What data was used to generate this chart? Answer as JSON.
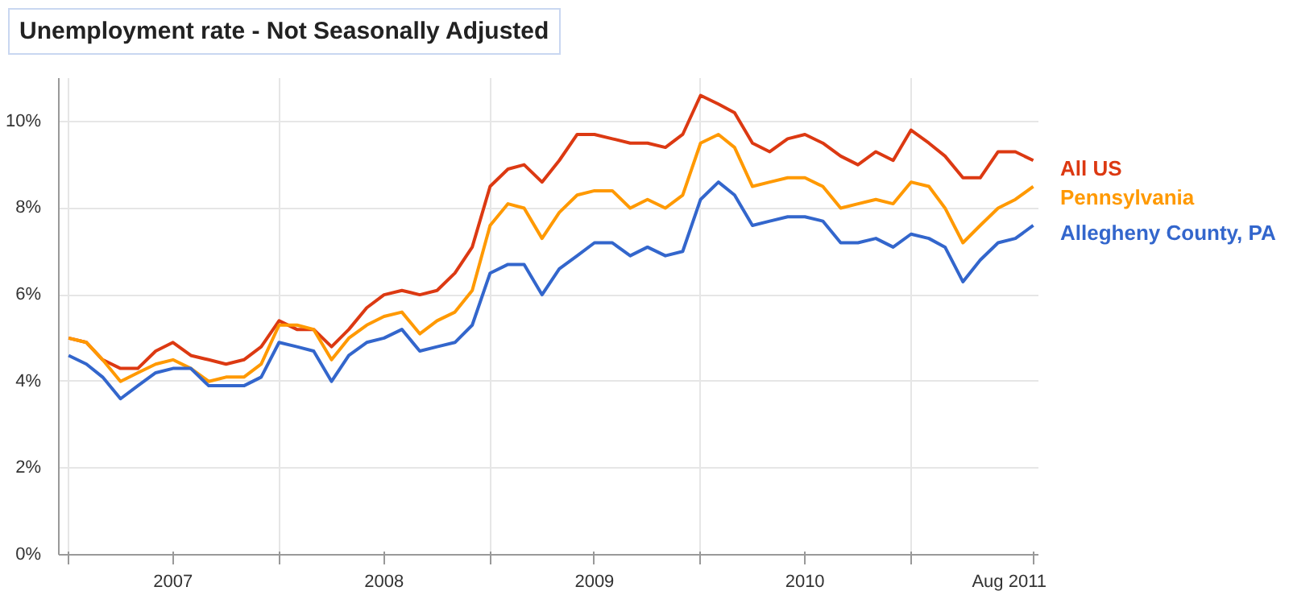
{
  "chart_data": {
    "type": "line",
    "title": "Unemployment rate - Not Seasonally Adjusted",
    "x": [
      "2007-01",
      "2007-02",
      "2007-03",
      "2007-04",
      "2007-05",
      "2007-06",
      "2007-07",
      "2007-08",
      "2007-09",
      "2007-10",
      "2007-11",
      "2007-12",
      "2008-01",
      "2008-02",
      "2008-03",
      "2008-04",
      "2008-05",
      "2008-06",
      "2008-07",
      "2008-08",
      "2008-09",
      "2008-10",
      "2008-11",
      "2008-12",
      "2009-01",
      "2009-02",
      "2009-03",
      "2009-04",
      "2009-05",
      "2009-06",
      "2009-07",
      "2009-08",
      "2009-09",
      "2009-10",
      "2009-11",
      "2009-12",
      "2010-01",
      "2010-02",
      "2010-03",
      "2010-04",
      "2010-05",
      "2010-06",
      "2010-07",
      "2010-08",
      "2010-09",
      "2010-10",
      "2010-11",
      "2010-12",
      "2011-01",
      "2011-02",
      "2011-03",
      "2011-04",
      "2011-05",
      "2011-06",
      "2011-07",
      "2011-08"
    ],
    "series": [
      {
        "name": "All US",
        "color": "#dc3912",
        "values": [
          5.0,
          4.9,
          4.5,
          4.3,
          4.3,
          4.7,
          4.9,
          4.6,
          4.5,
          4.4,
          4.5,
          4.8,
          5.4,
          5.2,
          5.2,
          4.8,
          5.2,
          5.7,
          6.0,
          6.1,
          6.0,
          6.1,
          6.5,
          7.1,
          8.5,
          8.9,
          9.0,
          8.6,
          9.1,
          9.7,
          9.7,
          9.6,
          9.5,
          9.5,
          9.4,
          9.7,
          10.6,
          10.4,
          10.2,
          9.5,
          9.3,
          9.6,
          9.7,
          9.5,
          9.2,
          9.0,
          9.3,
          9.1,
          9.8,
          9.5,
          9.2,
          8.7,
          8.7,
          9.3,
          9.3,
          9.1
        ]
      },
      {
        "name": "Pennsylvania",
        "color": "#ff9900",
        "values": [
          5.0,
          4.9,
          4.5,
          4.0,
          4.2,
          4.4,
          4.5,
          4.3,
          4.0,
          4.1,
          4.1,
          4.4,
          5.3,
          5.3,
          5.2,
          4.5,
          5.0,
          5.3,
          5.5,
          5.6,
          5.1,
          5.4,
          5.6,
          6.1,
          7.6,
          8.1,
          8.0,
          7.3,
          7.9,
          8.3,
          8.4,
          8.4,
          8.0,
          8.2,
          8.0,
          8.3,
          9.5,
          9.7,
          9.4,
          8.5,
          8.6,
          8.7,
          8.7,
          8.5,
          8.0,
          8.1,
          8.2,
          8.1,
          8.6,
          8.5,
          8.0,
          7.2,
          7.6,
          8.0,
          8.2,
          8.5
        ]
      },
      {
        "name": "Allegheny County, PA",
        "color": "#3366cc",
        "values": [
          4.6,
          4.4,
          4.1,
          3.6,
          3.9,
          4.2,
          4.3,
          4.3,
          3.9,
          3.9,
          3.9,
          4.1,
          4.9,
          4.8,
          4.7,
          4.0,
          4.6,
          4.9,
          5.0,
          5.2,
          4.7,
          4.8,
          4.9,
          5.3,
          6.5,
          6.7,
          6.7,
          6.0,
          6.6,
          6.9,
          7.2,
          7.2,
          6.9,
          7.1,
          6.9,
          7.0,
          8.2,
          8.6,
          8.3,
          7.6,
          7.7,
          7.8,
          7.8,
          7.7,
          7.2,
          7.2,
          7.3,
          7.1,
          7.4,
          7.3,
          7.1,
          6.3,
          6.8,
          7.2,
          7.3,
          7.6
        ]
      }
    ],
    "xlim": [
      "2006-12-15",
      "2011-08-10"
    ],
    "xticks": [
      {
        "value": "2007-01",
        "label": null
      },
      {
        "value": "2007-07",
        "label": "2007"
      },
      {
        "value": "2008-01",
        "label": null
      },
      {
        "value": "2008-07",
        "label": "2008"
      },
      {
        "value": "2009-01",
        "label": null
      },
      {
        "value": "2009-07",
        "label": "2009"
      },
      {
        "value": "2010-01",
        "label": null
      },
      {
        "value": "2010-07",
        "label": "2010"
      },
      {
        "value": "2011-01",
        "label": null
      },
      {
        "value": "2011-08",
        "label": "Aug 2011"
      }
    ],
    "ylim": [
      0,
      11
    ],
    "yticks": [
      {
        "value": 0,
        "label": "0%"
      },
      {
        "value": 2,
        "label": "2%"
      },
      {
        "value": 4,
        "label": "4%"
      },
      {
        "value": 6,
        "label": "6%"
      },
      {
        "value": 8,
        "label": "8%"
      },
      {
        "value": 10,
        "label": "10%"
      }
    ],
    "grid": true,
    "marker": "none",
    "line_style": "solid"
  }
}
